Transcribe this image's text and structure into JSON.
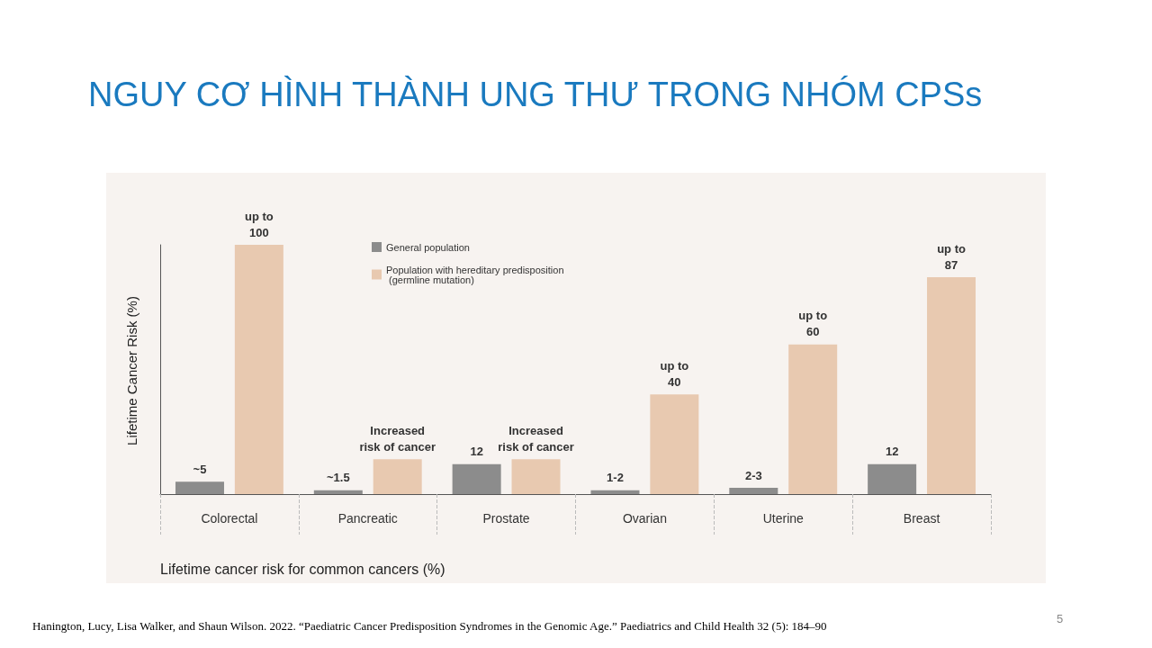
{
  "chart_data": {
    "type": "bar",
    "title": "NGUY CƠ HÌNH THÀNH UNG THƯ TRONG NHÓM CPSs",
    "ylabel": "Lifetime Cancer Risk (%)",
    "xlabel": "Lifetime cancer risk for common cancers (%)",
    "ylim": [
      0,
      100
    ],
    "tick_labels": "x",
    "categories": [
      "Colorectal",
      "Pancreatic",
      "Prostate",
      "Ovarian",
      "Uterine",
      "Breast"
    ],
    "series": [
      {
        "name": "General population",
        "color": "#8c8c8c",
        "values": [
          5,
          1.5,
          12,
          1.5,
          2.5,
          12
        ],
        "value_labels": [
          "~5",
          "~1.5",
          "12",
          "1-2",
          "2-3",
          "12"
        ]
      },
      {
        "name": "Population with hereditary predisposition (germline mutation)",
        "color": "#e8c9b0",
        "values": [
          100,
          14,
          14,
          40,
          60,
          87
        ],
        "value_labels": [
          "up to\n100",
          "Increased\nrisk of cancer",
          "Increased\nrisk of cancer",
          "up to\n40",
          "up to\n60",
          "up to\n87"
        ]
      }
    ],
    "legend": "top left",
    "grid": false,
    "annotations": [
      "Hanington, Lucy, Lisa Walker, and Shaun Wilson. 2022. “Paediatric Cancer Predisposition Syndromes in the Genomic Age.” Paediatrics and Child Health 32 (5): 184–90",
      "5"
    ]
  }
}
